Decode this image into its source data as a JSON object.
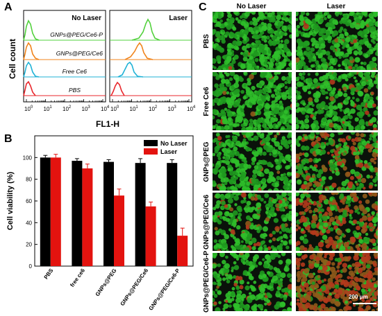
{
  "panel_a": {
    "label": "A",
    "ylabel": "Cell count",
    "xlabel": "FL1-H",
    "left_title": "No Laser",
    "right_title": "Laser",
    "tick_base": "10",
    "tick_exps": [
      "0",
      "1",
      "2",
      "3",
      "4"
    ],
    "curve_labels": [
      "GNPs@PEG/Ce6-P",
      "GNPs@PEG/Ce6",
      "Free Ce6",
      "PBS"
    ],
    "colors": {
      "GNPs@PEG/Ce6-P": "#52d13c",
      "GNPs@PEG/Ce6": "#f0841c",
      "Free Ce6": "#1fb2d6",
      "PBS": "#e8262b"
    }
  },
  "panel_b": {
    "label": "B",
    "chart_data": {
      "type": "bar",
      "ylabel": "Cell viability (%)",
      "ylim": [
        0,
        120
      ],
      "yticks": [
        "0",
        "20",
        "40",
        "60",
        "80",
        "100"
      ],
      "categories": [
        "PBS",
        "free ce6",
        "GNPs@PEG",
        "GNPs@PEG/Ce6",
        "GNPs@PEG/Ce6-P"
      ],
      "series": [
        {
          "name": "No Laser",
          "color": "#000000",
          "values": [
            100,
            97,
            96,
            95,
            95
          ],
          "errors": [
            2,
            2,
            2,
            4,
            3
          ]
        },
        {
          "name": "Laser",
          "color": "#e3130f",
          "values": [
            100,
            90,
            65,
            55,
            28
          ],
          "errors": [
            3,
            4,
            6,
            4,
            7
          ]
        }
      ],
      "legend_position": "top-right"
    }
  },
  "panel_c": {
    "label": "C",
    "columns": [
      "No Laser",
      "Laser"
    ],
    "rows": [
      "PBS",
      "Free Ce6",
      "GNPs@PEG",
      "GNPs@PEG/Ce6",
      "GNPs@PEG/Ce6-P"
    ],
    "scale_bar": "200 μm"
  }
}
